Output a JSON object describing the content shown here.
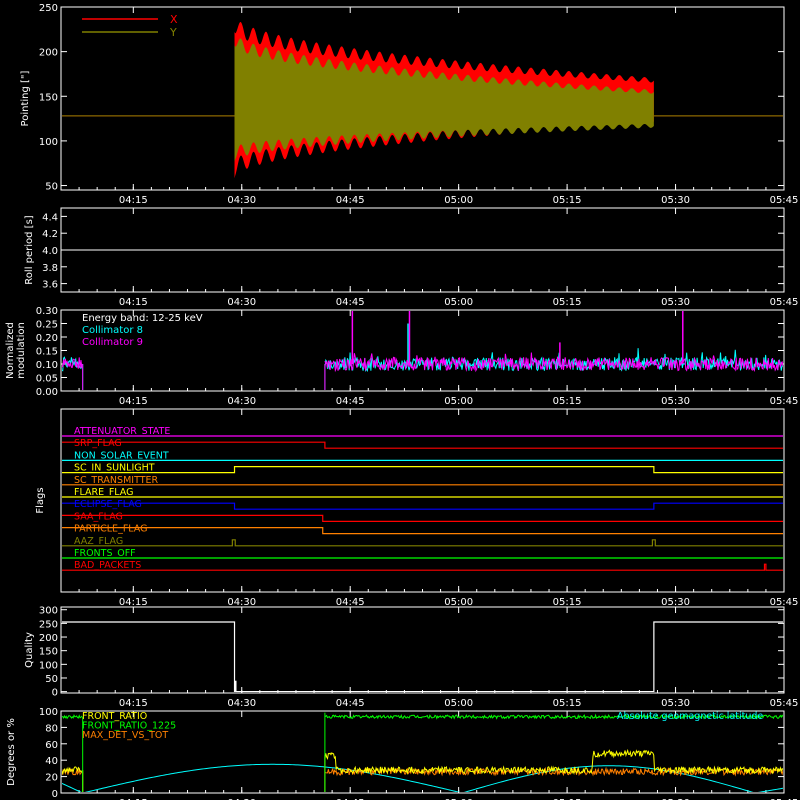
{
  "x_axis": {
    "min_min": 0,
    "max_min": 100,
    "ticks": [
      {
        "label": "04:15",
        "value": 10
      },
      {
        "label": "04:30",
        "value": 25
      },
      {
        "label": "04:45",
        "value": 40
      },
      {
        "label": "05:00",
        "value": 55
      },
      {
        "label": "05:15",
        "value": 70
      },
      {
        "label": "05:30",
        "value": 85
      },
      {
        "label": "05:45",
        "value": 100
      }
    ]
  },
  "chart_data": [
    {
      "type": "line",
      "ylabel": "Pointing [\"]",
      "ylim": [
        45,
        250
      ],
      "yticks": [
        "50",
        "100",
        "150",
        "200",
        "250"
      ],
      "ytick_values": [
        50,
        100,
        150,
        200,
        250
      ],
      "legend": [
        "X",
        "Y"
      ],
      "series": [
        {
          "name": "X",
          "color": "#ff0000",
          "baseline": 128,
          "active_start": 24,
          "active_end": 82,
          "envelope_start": [
            68,
            232
          ],
          "envelope_end": [
            122,
            168
          ]
        },
        {
          "name": "Y",
          "color": "#808000",
          "baseline": 128,
          "active_start": 24,
          "active_end": 82,
          "envelope_start": [
            85,
            215
          ],
          "envelope_end": [
            117,
            155
          ]
        }
      ]
    },
    {
      "type": "line",
      "ylabel": "Roll period [s]",
      "ylim": [
        3.5,
        4.5
      ],
      "yticks": [
        "3.6",
        "3.8",
        "4.0",
        "4.2",
        "4.4"
      ],
      "ytick_values": [
        3.6,
        3.8,
        4.0,
        4.2,
        4.4
      ],
      "series": [
        {
          "name": "",
          "color": "#ffffff",
          "constant": 4.0
        }
      ]
    },
    {
      "type": "line",
      "ylabel": "Normalized modulation",
      "ylabel_lines": [
        "Normalized",
        "modulation"
      ],
      "ylim": [
        0,
        0.3
      ],
      "yticks": [
        "0.00",
        "0.05",
        "0.10",
        "0.15",
        "0.20",
        "0.25",
        "0.30"
      ],
      "ytick_values": [
        0,
        0.05,
        0.1,
        0.15,
        0.2,
        0.25,
        0.3
      ],
      "legend": [
        "Energy band: 12-25 keV",
        "Collimator 8",
        "Collimator 9"
      ],
      "legend_colors": [
        "#ffffff",
        "#00ffff",
        "#ff00ff"
      ],
      "series": [
        {
          "name": "Collimator 8",
          "color": "#00ffff",
          "level": 0.1,
          "gap_start": 3,
          "gap_end": 36.5,
          "spikes": [
            [
              48,
              0.25
            ]
          ]
        },
        {
          "name": "Collimator 9",
          "color": "#ff00ff",
          "level": 0.1,
          "gap_start": 3,
          "gap_end": 36.5,
          "spikes": [
            [
              40.3,
              0.31
            ],
            [
              48.2,
              0.31
            ],
            [
              86,
              0.31
            ],
            [
              69,
              0.18
            ]
          ]
        }
      ]
    },
    {
      "type": "step",
      "ylabel": "Flags",
      "flags": [
        {
          "name": "ATTENUATOR_STATE",
          "color": "#ff00ff",
          "transitions": []
        },
        {
          "name": "SRP_FLAG",
          "color": "#ff0000",
          "transitions": [
            [
              36.5,
              -1
            ]
          ]
        },
        {
          "name": "NON_SOLAR_EVENT",
          "color": "#00ffff",
          "transitions": []
        },
        {
          "name": "SC_IN_SUNLIGHT",
          "color": "#ffff00",
          "transitions": [
            [
              24,
              1
            ],
            [
              82,
              -1
            ]
          ]
        },
        {
          "name": "SC_TRANSMITTER",
          "color": "#ff8000",
          "transitions": []
        },
        {
          "name": "FLARE_FLAG",
          "color": "#ffff00",
          "transitions": []
        },
        {
          "name": "ECLIPSE_FLAG",
          "color": "#0000ff",
          "transitions": [
            [
              24,
              -1
            ],
            [
              82,
              1
            ]
          ]
        },
        {
          "name": "SAA_FLAG",
          "color": "#ff0000",
          "transitions": [
            [
              36.2,
              -1
            ]
          ]
        },
        {
          "name": "PARTICLE_FLAG",
          "color": "#ff8000",
          "transitions": [
            [
              36.2,
              -1
            ]
          ]
        },
        {
          "name": "AAZ_FLAG",
          "color": "#808000",
          "transitions": [
            [
              23.7,
              1
            ],
            [
              24.1,
              -1
            ],
            [
              81.8,
              1
            ],
            [
              82.2,
              -1
            ]
          ]
        },
        {
          "name": "FRONTS_OFF",
          "color": "#00ff00",
          "transitions": []
        },
        {
          "name": "BAD_PACKETS",
          "color": "#ff0000",
          "transitions": [
            [
              97.3,
              1
            ],
            [
              97.5,
              -1
            ]
          ]
        }
      ]
    },
    {
      "type": "line",
      "ylabel": "Quality",
      "ylim": [
        -5,
        310
      ],
      "yticks": [
        "0",
        "50",
        "100",
        "150",
        "200",
        "250",
        "300"
      ],
      "ytick_values": [
        0,
        50,
        100,
        150,
        200,
        250,
        300
      ],
      "series": [
        {
          "name": "",
          "color": "#ffffff",
          "segments": [
            [
              0,
              24,
              255
            ],
            [
              24,
              82,
              0
            ],
            [
              82,
              100,
              255
            ]
          ]
        }
      ]
    },
    {
      "type": "line",
      "ylabel": "Degrees or %",
      "ylim": [
        0,
        100
      ],
      "yticks": [
        "0",
        "20",
        "40",
        "60",
        "80",
        "100"
      ],
      "ytick_values": [
        0,
        20,
        40,
        60,
        80,
        100
      ],
      "legend": [
        "FRONT_RATIO",
        "FRONT_RATIO_1225",
        "MAX_DET_VS_TOT"
      ],
      "legend_colors": [
        "#ffff00",
        "#00ff00",
        "#ff8000"
      ],
      "annotation": "Absolute geomagnetic latitude",
      "annotation_color": "#00ffff",
      "series": [
        {
          "name": "FRONT_RATIO",
          "color": "#ffff00",
          "level": 28,
          "gap_start": 3,
          "gap_end": 36.5,
          "plateaus": [
            [
              36.5,
              38,
              45
            ],
            [
              73.5,
              82,
              48
            ]
          ]
        },
        {
          "name": "FRONT_RATIO_1225",
          "color": "#00ff00",
          "level": 93,
          "gap_start": 3,
          "gap_end": 36.5,
          "start_level": 93
        },
        {
          "name": "MAX_DET_VS_TOT",
          "color": "#ff8000",
          "level": 26,
          "gap_start": 3,
          "gap_end": 36.5
        },
        {
          "name": "Absolute geomagnetic latitude",
          "color": "#00ffff",
          "minima": [
            3,
            55.5,
            96
          ],
          "maxima": [
            29,
            77
          ],
          "peak": 35
        }
      ]
    }
  ]
}
